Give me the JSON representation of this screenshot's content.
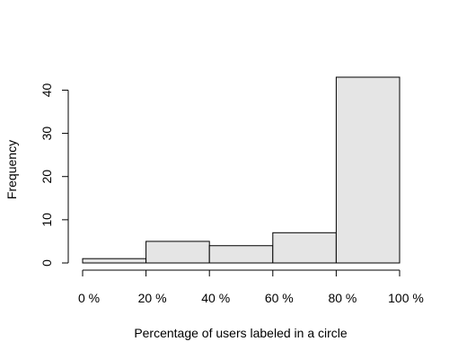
{
  "chart_data": {
    "type": "bar",
    "bins": [
      [
        0,
        20
      ],
      [
        20,
        40
      ],
      [
        40,
        60
      ],
      [
        60,
        80
      ],
      [
        80,
        100
      ]
    ],
    "values": [
      1,
      5,
      4,
      7,
      43
    ],
    "xlabel": "Percentage of users labeled in a circle",
    "ylabel": "Frequency",
    "xlim": [
      0,
      100
    ],
    "ylim": [
      0,
      43
    ],
    "x_ticks": [
      0,
      20,
      40,
      60,
      80,
      100
    ],
    "x_tick_labels": [
      "0 %",
      "20 %",
      "40 %",
      "60 %",
      "80 %",
      "100 %"
    ],
    "y_ticks": [
      0,
      10,
      20,
      30,
      40
    ],
    "y_tick_labels": [
      "0",
      "10",
      "20",
      "30",
      "40"
    ],
    "bar_fill": "#e5e5e5",
    "bar_stroke": "#000000",
    "grid": false
  }
}
